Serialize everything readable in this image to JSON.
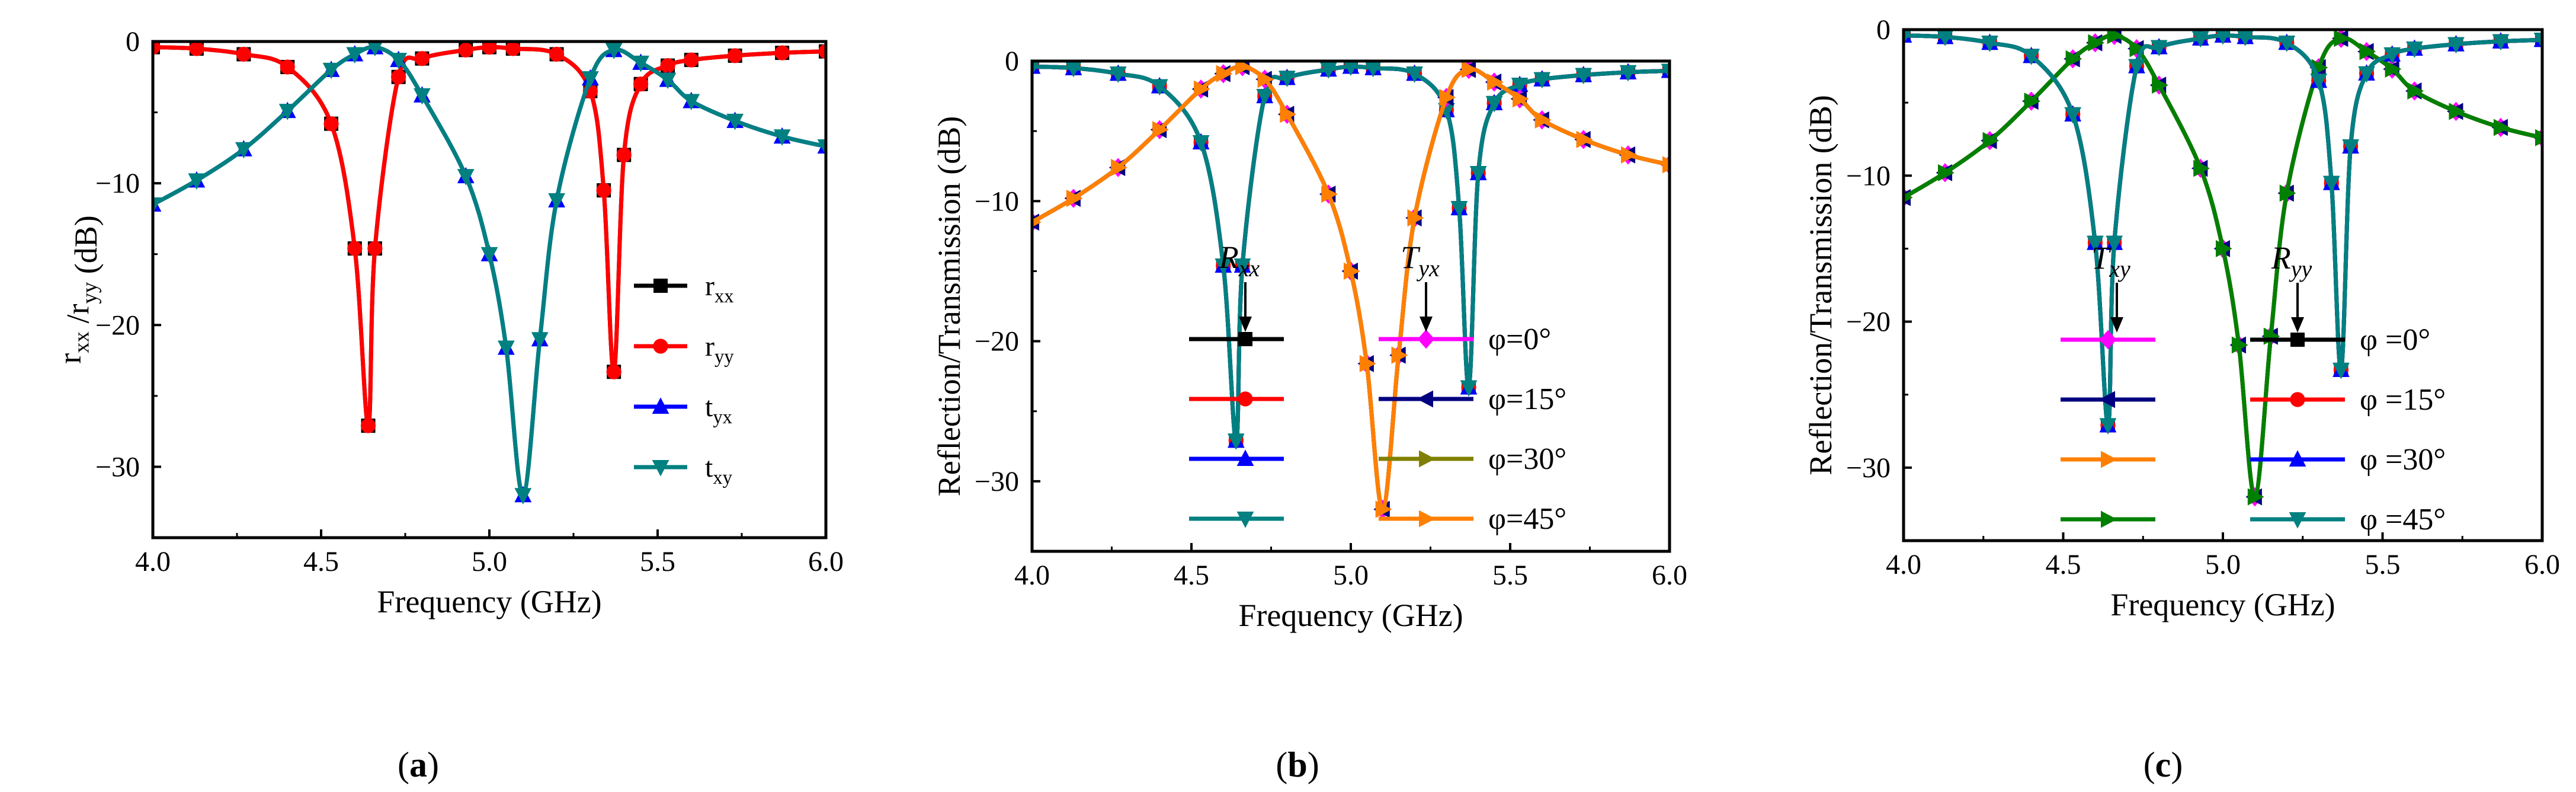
{
  "colors": {
    "black": "#000000",
    "red": "#ff0000",
    "blue": "#0000ff",
    "teal": "#008080",
    "magenta": "#ff00ff",
    "navy": "#000080",
    "olive": "#808000",
    "orange": "#ff8000",
    "green": "#008000"
  },
  "chart_data": [
    {
      "type": "line",
      "panel_label": "(a)",
      "xlabel": "Frequency (GHz)",
      "ylabel": "r_xx /r_yy (dB)",
      "xlim": [
        4.0,
        6.0
      ],
      "ylim": [
        -35,
        0
      ],
      "xticks": [
        "4.0",
        "4.5",
        "5.0",
        "5.5",
        "6.0"
      ],
      "yticks": [
        "0",
        "−10",
        "−20",
        "−30"
      ],
      "legend_position": "right",
      "series": [
        {
          "name": "r_xx",
          "color": "black",
          "marker": "square",
          "shape": "ry"
        },
        {
          "name": "r_yy",
          "color": "red",
          "marker": "circle",
          "shape": "ry"
        },
        {
          "name": "t_yx",
          "color": "blue",
          "marker": "triangle-up",
          "shape": "txy"
        },
        {
          "name": "t_xy",
          "color": "teal",
          "marker": "triangle-down",
          "shape": "txy"
        }
      ]
    },
    {
      "type": "line",
      "panel_label": "(b)",
      "xlabel": "Frequency (GHz)",
      "ylabel": "Reflection/Transmission (dB)",
      "xlim": [
        4.0,
        6.0
      ],
      "ylim": [
        -35,
        0
      ],
      "xticks": [
        "4.0",
        "4.5",
        "5.0",
        "5.5",
        "6.0"
      ],
      "yticks": [
        "0",
        "−10",
        "−20",
        "−30"
      ],
      "legend_position": "bottom-center",
      "annotations": [
        {
          "text": "R",
          "sub": "xx"
        },
        {
          "text": "T",
          "sub": "yx"
        }
      ],
      "legend_angles": [
        "φ=0°",
        "φ=15°",
        "φ=30°",
        "φ=45°"
      ],
      "series": [
        {
          "name": "R_xx φ=0°",
          "color": "black",
          "marker": "square",
          "shape": "rx"
        },
        {
          "name": "R_xx φ=15°",
          "color": "red",
          "marker": "circle",
          "shape": "rx"
        },
        {
          "name": "R_xx φ=30°",
          "color": "blue",
          "marker": "triangle-up",
          "shape": "rx"
        },
        {
          "name": "R_xx φ=45°",
          "color": "teal",
          "marker": "triangle-down",
          "shape": "rx"
        },
        {
          "name": "T_yx φ=0°",
          "color": "magenta",
          "marker": "diamond",
          "shape": "tyx"
        },
        {
          "name": "T_yx φ=15°",
          "color": "navy",
          "marker": "triangle-left",
          "shape": "tyx"
        },
        {
          "name": "T_yx φ=30°",
          "color": "olive",
          "marker": "triangle-right",
          "shape": "tyx"
        },
        {
          "name": "T_yx φ=45°",
          "color": "orange",
          "marker": "triangle-right",
          "shape": "tyx"
        }
      ]
    },
    {
      "type": "line",
      "panel_label": "(c)",
      "xlabel": "Frequency (GHz)",
      "ylabel": "Reflection/Transmission (dB)",
      "xlim": [
        4.0,
        6.0
      ],
      "ylim": [
        -35,
        0
      ],
      "xticks": [
        "4.0",
        "4.5",
        "5.0",
        "5.5",
        "6.0"
      ],
      "yticks": [
        "0",
        "−10",
        "−20",
        "−30"
      ],
      "legend_position": "bottom-center",
      "annotations": [
        {
          "text": "T",
          "sub": "xy"
        },
        {
          "text": "R",
          "sub": "yy"
        }
      ],
      "legend_angles": [
        "φ =0°",
        "φ =15°",
        "φ =30°",
        "φ =45°"
      ],
      "series": [
        {
          "name": "T_xy φ=0°",
          "color": "magenta",
          "marker": "diamond",
          "shape": "txy"
        },
        {
          "name": "T_xy φ=15°",
          "color": "navy",
          "marker": "triangle-left",
          "shape": "txy"
        },
        {
          "name": "T_xy φ=30°",
          "color": "orange",
          "marker": "triangle-right",
          "shape": "txy"
        },
        {
          "name": "T_xy φ=45°",
          "color": "green",
          "marker": "triangle-right",
          "shape": "txy"
        },
        {
          "name": "R_yy φ=0°",
          "color": "black",
          "marker": "square",
          "shape": "ry"
        },
        {
          "name": "R_yy φ=15°",
          "color": "red",
          "marker": "circle",
          "shape": "ry"
        },
        {
          "name": "R_yy φ=30°",
          "color": "blue",
          "marker": "triangle-up",
          "shape": "ry"
        },
        {
          "name": "R_yy φ=45°",
          "color": "teal",
          "marker": "triangle-down",
          "shape": "ry"
        }
      ]
    }
  ],
  "curves": {
    "ry": {
      "x": [
        4.0,
        4.13,
        4.27,
        4.4,
        4.53,
        4.6,
        4.64,
        4.66,
        4.73,
        4.8,
        4.93,
        5.0,
        5.07,
        5.2,
        5.3,
        5.34,
        5.37,
        5.4,
        5.45,
        5.53,
        5.6,
        5.73,
        5.87,
        6.0
      ],
      "y": [
        -0.4,
        -0.5,
        -0.9,
        -1.8,
        -5.8,
        -14.6,
        -27.1,
        -14.6,
        -2.5,
        -1.2,
        -0.6,
        -0.4,
        -0.5,
        -0.9,
        -3.5,
        -10.5,
        -23.3,
        -8.0,
        -3.0,
        -1.7,
        -1.3,
        -1.0,
        -0.8,
        -0.7
      ]
    },
    "rx": {
      "x": [
        4.0,
        4.13,
        4.27,
        4.4,
        4.53,
        4.6,
        4.64,
        4.66,
        4.73,
        4.8,
        4.93,
        5.0,
        5.07,
        5.2,
        5.3,
        5.34,
        5.37,
        5.4,
        5.45,
        5.53,
        5.6,
        5.73,
        5.87,
        6.0
      ],
      "y": [
        -0.4,
        -0.5,
        -0.9,
        -1.8,
        -5.8,
        -14.6,
        -27.1,
        -14.6,
        -2.5,
        -1.2,
        -0.6,
        -0.4,
        -0.5,
        -0.9,
        -3.5,
        -10.5,
        -23.3,
        -8.0,
        -3.0,
        -1.7,
        -1.3,
        -1.0,
        -0.8,
        -0.7
      ]
    },
    "txy": {
      "x": [
        4.0,
        4.13,
        4.27,
        4.4,
        4.53,
        4.6,
        4.66,
        4.73,
        4.8,
        4.93,
        5.0,
        5.05,
        5.1,
        5.15,
        5.2,
        5.3,
        5.37,
        5.45,
        5.53,
        5.6,
        5.73,
        5.87,
        6.0
      ],
      "y": [
        -11.5,
        -9.8,
        -7.6,
        -4.9,
        -2.0,
        -0.9,
        -0.4,
        -1.3,
        -3.8,
        -9.5,
        -15.0,
        -21.6,
        -32.0,
        -21.0,
        -11.2,
        -2.6,
        -0.6,
        -1.5,
        -2.7,
        -4.2,
        -5.6,
        -6.7,
        -7.4
      ]
    },
    "tyx": {
      "x": [
        4.0,
        4.13,
        4.27,
        4.4,
        4.53,
        4.6,
        4.66,
        4.73,
        4.8,
        4.93,
        5.0,
        5.05,
        5.1,
        5.15,
        5.2,
        5.3,
        5.37,
        5.45,
        5.53,
        5.6,
        5.73,
        5.87,
        6.0
      ],
      "y": [
        -11.5,
        -9.8,
        -7.6,
        -4.9,
        -2.0,
        -0.9,
        -0.4,
        -1.3,
        -3.8,
        -9.5,
        -15.0,
        -21.6,
        -32.0,
        -21.0,
        -11.2,
        -2.6,
        -0.6,
        -1.5,
        -2.7,
        -4.2,
        -5.6,
        -6.7,
        -7.4
      ]
    }
  }
}
